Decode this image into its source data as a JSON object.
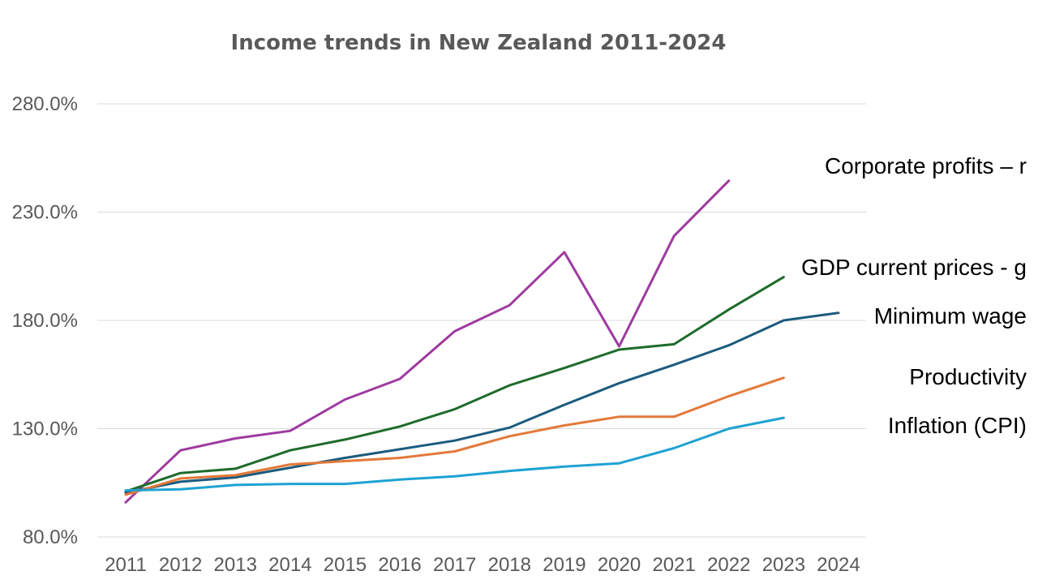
{
  "chart_data": {
    "type": "line",
    "title": "Income trends in New Zealand 2011-2024",
    "x": [
      "2011",
      "2012",
      "2013",
      "2014",
      "2015",
      "2016",
      "2017",
      "2018",
      "2019",
      "2020",
      "2021",
      "2022",
      "2023",
      "2024"
    ],
    "ylim": [
      80,
      280
    ],
    "yticks": [
      80,
      130,
      180,
      230,
      280
    ],
    "ytick_labels": [
      "80.0%",
      "130.0%",
      "180.0%",
      "230.0%",
      "280.0%"
    ],
    "grid": true,
    "legend": "direct labels at line ends",
    "series": [
      {
        "name": "Corporate profits – r",
        "color": "#9E3AA0",
        "values": [
          96,
          120,
          125.5,
          129,
          143.5,
          153,
          175,
          187,
          211.5,
          168,
          219,
          244.5,
          null,
          null
        ]
      },
      {
        "name": "GDP current prices - g",
        "color": "#1E6B2B",
        "values": [
          101,
          109.5,
          111.5,
          120,
          125,
          131,
          139,
          150,
          158,
          166.5,
          169,
          185,
          200,
          null
        ]
      },
      {
        "name": "Minimum wage",
        "color": "#1B5B7E",
        "values": [
          100.5,
          105.5,
          107.5,
          112,
          116.5,
          120.5,
          124.5,
          130.5,
          141,
          151,
          159.5,
          168.5,
          180,
          183.5
        ]
      },
      {
        "name": "Productivity",
        "color": "#E2793A",
        "values": [
          99.5,
          107,
          108.5,
          113.5,
          115,
          116.5,
          119.5,
          126.5,
          131.5,
          135.5,
          135.5,
          145,
          153.5,
          null
        ]
      },
      {
        "name": "Inflation (CPI)",
        "color": "#1EA2D2",
        "values": [
          101.5,
          102,
          104,
          104.5,
          104.5,
          106.5,
          108,
          110.5,
          112.5,
          114,
          121,
          130,
          135,
          null
        ]
      }
    ]
  }
}
